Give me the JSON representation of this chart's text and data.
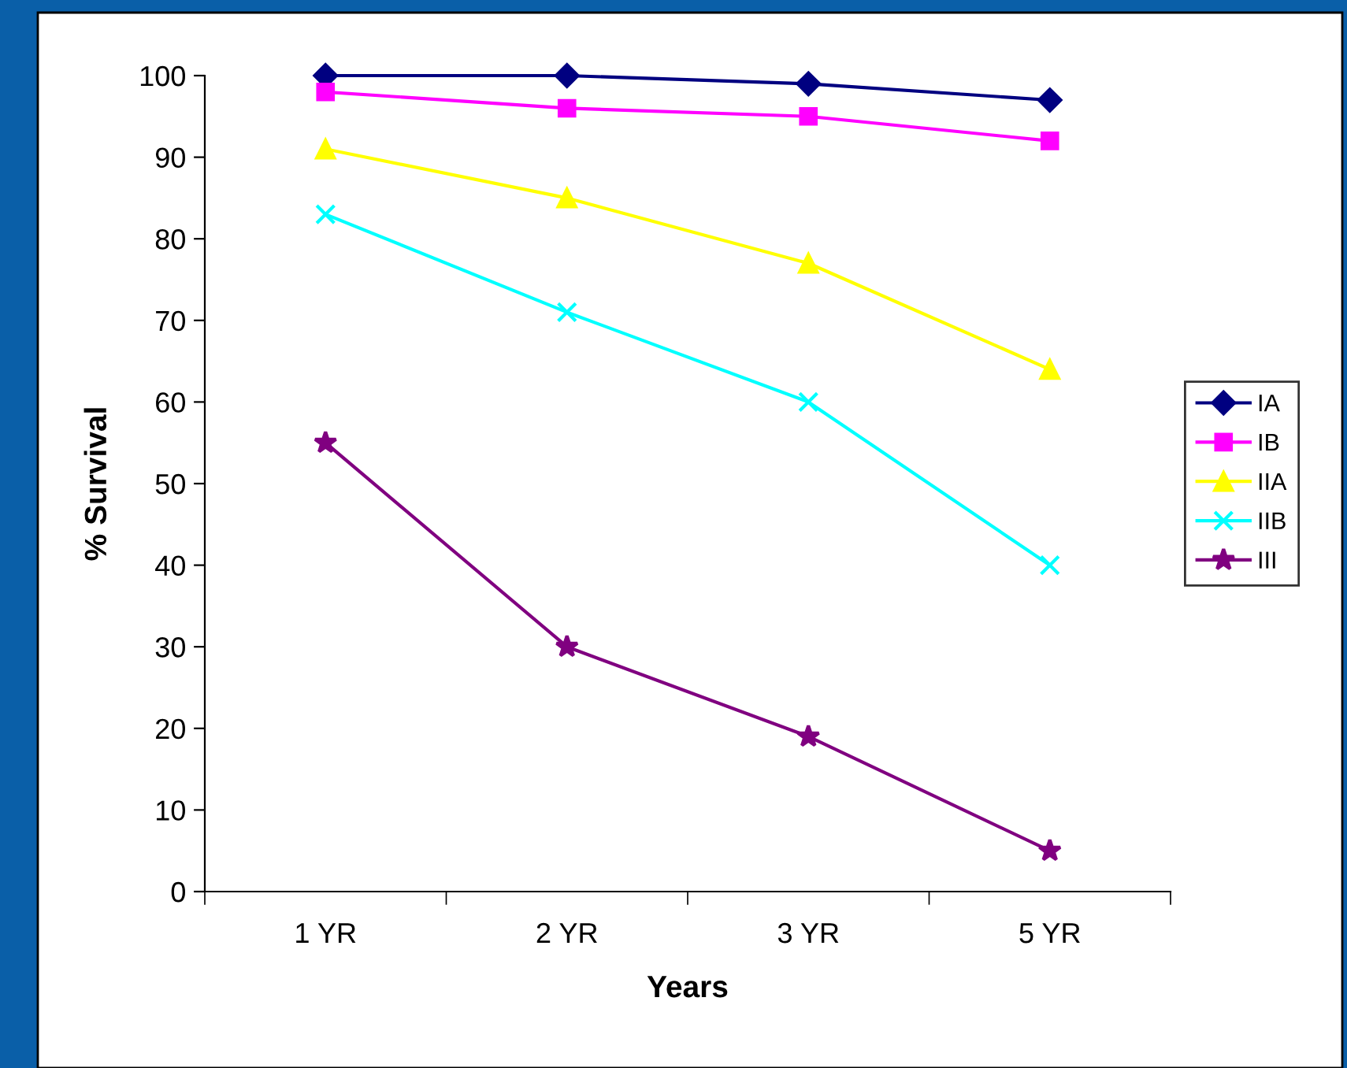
{
  "chart_data": {
    "type": "line",
    "xlabel": "Years",
    "ylabel": "% Survival",
    "categories": [
      "1 YR",
      "2 YR",
      "3 YR",
      "5 YR"
    ],
    "series": [
      {
        "name": "IA",
        "color": "#000080",
        "marker": "diamond",
        "values": [
          100,
          100,
          99,
          97
        ]
      },
      {
        "name": "IB",
        "color": "#ff00ff",
        "marker": "square",
        "values": [
          98,
          96,
          95,
          92
        ]
      },
      {
        "name": "IIA",
        "color": "#ffff00",
        "marker": "triangle",
        "values": [
          91,
          85,
          77,
          64
        ]
      },
      {
        "name": "IIB",
        "color": "#00ffff",
        "marker": "cross",
        "values": [
          83,
          71,
          60,
          40
        ]
      },
      {
        "name": "III",
        "color": "#800080",
        "marker": "star",
        "values": [
          55,
          30,
          19,
          5
        ]
      }
    ],
    "ylim": [
      0,
      100
    ],
    "yticks": [
      0,
      10,
      20,
      30,
      40,
      50,
      60,
      70,
      80,
      90,
      100
    ],
    "grid": false,
    "legend": "right",
    "line_style": "solid"
  }
}
